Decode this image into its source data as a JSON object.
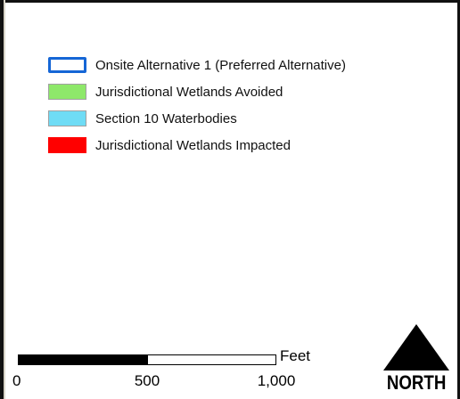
{
  "legend": {
    "items": [
      {
        "label": "Onsite Alternative 1 (Preferred Alternative)",
        "style": "outline",
        "color": "#1566d6"
      },
      {
        "label": "Jurisdictional Wetlands Avoided",
        "style": "fill",
        "color": "#8ee86a",
        "border": "#a0a0a0"
      },
      {
        "label": "Section 10 Waterbodies",
        "style": "fill",
        "color": "#6fdcf5",
        "border": "#a0a0a0"
      },
      {
        "label": "Jurisdictional Wetlands Impacted",
        "style": "fill",
        "color": "#ff0000",
        "border": "#ff0000"
      }
    ]
  },
  "scalebar": {
    "unit": "Feet",
    "ticks": [
      {
        "value": 0,
        "label": "0"
      },
      {
        "value": 500,
        "label": "500"
      },
      {
        "value": 1000,
        "label": "1,000"
      }
    ],
    "max_value": 1000
  },
  "north_arrow": {
    "label": "NORTH",
    "icon": "north-arrow-icon"
  }
}
